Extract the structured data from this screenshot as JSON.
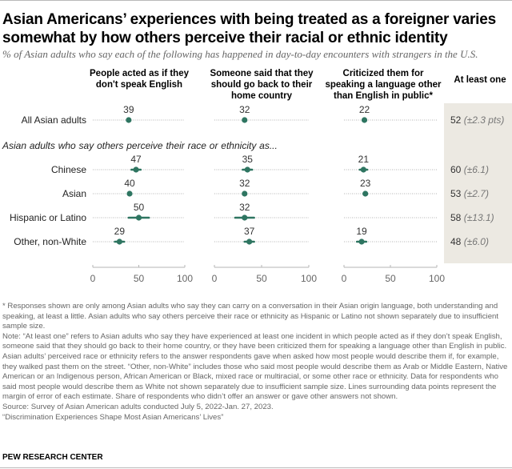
{
  "title": "Asian Americans’ experiences with being treated as a foreigner varies somewhat by how others perceive their racial or ethnic identity",
  "subtitle": "% of Asian adults who say each of the following has happened in day-to-day encounters with strangers in the U.S.",
  "chart_data": {
    "type": "scatter",
    "title": "Asian Americans’ experiences with being treated as a foreigner varies somewhat by how others perceive their racial or ethnic identity",
    "subtitle": "% of Asian adults who say each of the following has happened in day-to-day encounters with strangers in the U.S.",
    "panels": [
      "People acted as if they don't speak English",
      "Someone said that they should go back to their home country",
      "Criticized them for speaking a language other than English in public*"
    ],
    "summary_column": "At least one",
    "section_label": "Asian adults who say others perceive their race or ethnicity as...",
    "categories": [
      "All Asian adults",
      "Chinese",
      "Asian",
      "Hispanic or Latino",
      "Other, non-White"
    ],
    "series": [
      {
        "name": "People acted as if they don't speak English",
        "values": [
          39,
          47,
          40,
          50,
          29
        ],
        "moe": [
          1.5,
          5,
          1.5,
          11,
          5
        ]
      },
      {
        "name": "Someone said that they should go back to their home country",
        "values": [
          32,
          35,
          32,
          32,
          37
        ],
        "moe": [
          1.5,
          5,
          1.5,
          10,
          5
        ]
      },
      {
        "name": "Criticized them for speaking a language other than English in public*",
        "values": [
          22,
          21,
          23,
          null,
          19
        ],
        "moe": [
          1.5,
          4,
          1.5,
          null,
          5
        ]
      }
    ],
    "at_least_one": [
      {
        "value": 52,
        "moe": "±2.3 pts"
      },
      {
        "value": 60,
        "moe": "±6.1"
      },
      {
        "value": 53,
        "moe": "±2.7"
      },
      {
        "value": 58,
        "moe": "±13.1"
      },
      {
        "value": 48,
        "moe": "±6.0"
      }
    ],
    "xlim": [
      0,
      100
    ],
    "xticks": [
      0,
      50,
      100
    ],
    "colors": {
      "point": "#2e7561",
      "dotted_line": "#b5b5b5",
      "axis": "#b5b5b5",
      "shade": "#ece9e2"
    }
  },
  "notes": {
    "asterisk": "* Responses shown are only among Asian adults who say they can carry on a conversation in their Asian origin language, both understanding and speaking, at least a little. Asian adults who say others perceive their race or ethnicity as Hispanic or Latino not shown separately due to insufficient sample size.",
    "note": "Note: “At least one” refers to Asian adults who say they have experienced at least one incident in which people acted as if they don’t speak English, someone said that they should go back to their home country, or they have been criticized them for speaking a language other than English in public. Asian adults’ perceived race or ethnicity refers to the answer respondents gave when asked how most people would describe them if, for example, they walked past them on the street. “Other, non-White” includes those who said most people would describe them as Arab or Middle Eastern, Native American or an Indigenous person, African American or Black, mixed race or multiracial, or some other race or ethnicity. Data for respondents who said most people would describe them as White not shown separately due to insufficient sample size. Lines surrounding data points represent the margin of error of each estimate. Share of respondents who didn’t offer an answer or gave other answers not shown.",
    "source": "Source: Survey of Asian American adults conducted July 5, 2022-Jan. 27, 2023.",
    "report": "“Discrimination Experiences Shape Most Asian Americans’ Lives”"
  },
  "brand": "PEW RESEARCH CENTER"
}
